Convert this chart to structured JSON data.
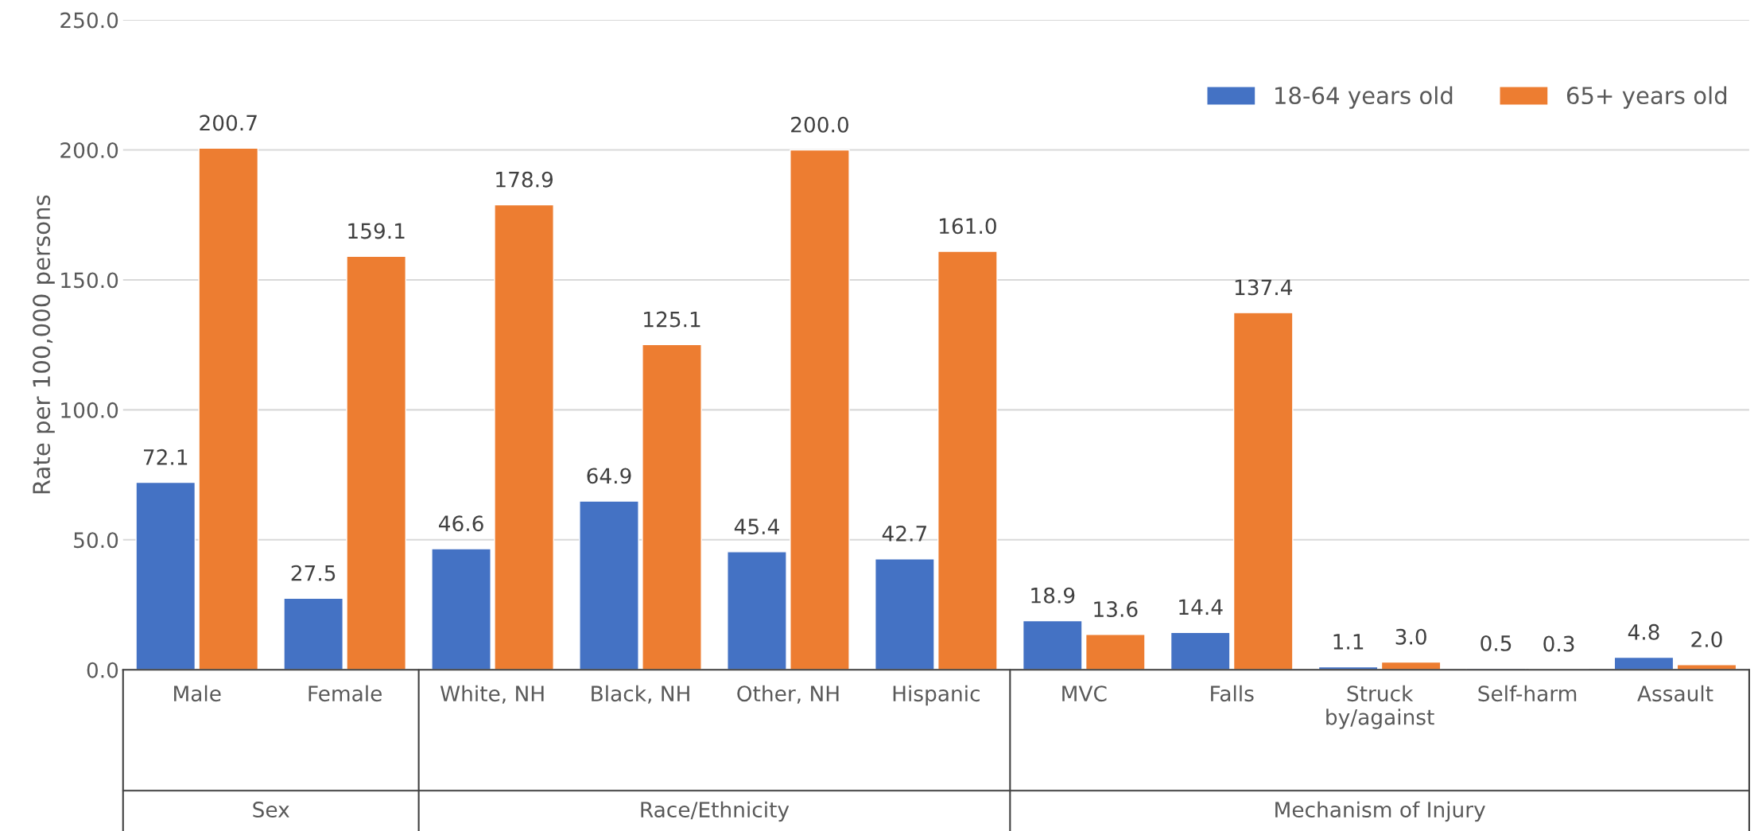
{
  "chart_data": {
    "type": "bar",
    "ylabel": "Rate per 100,000 persons",
    "categories": [
      "Male",
      "Female",
      "White, NH",
      "Black, NH",
      "Other, NH",
      "Hispanic",
      "MVC",
      "Falls",
      "Struck\nby/against",
      "Self-harm",
      "Assault"
    ],
    "series": [
      {
        "name": "18-64 years old",
        "color": "#4472c4",
        "values": [
          72.1,
          27.5,
          46.6,
          64.9,
          45.4,
          42.7,
          18.9,
          14.4,
          1.1,
          0.5,
          4.8
        ],
        "value_labels": [
          "72.1",
          "27.5",
          "46.6",
          "64.9",
          "45.4",
          "42.7",
          "18.9",
          "14.4",
          "1.1",
          "0.5",
          "4.8"
        ]
      },
      {
        "name": "65+ years old",
        "color": "#ed7d31",
        "values": [
          200.7,
          159.1,
          178.9,
          125.1,
          200.0,
          161.0,
          13.6,
          137.4,
          3.0,
          0.3,
          2.0
        ],
        "value_labels": [
          "200.7",
          "159.1",
          "178.9",
          "125.1",
          "200.0",
          "161.0",
          "13.6",
          "137.4",
          "3.0",
          "0.3",
          "2.0"
        ]
      }
    ],
    "ylim": [
      0,
      250
    ],
    "yticks": [
      {
        "value": 0,
        "label": "0.0"
      },
      {
        "value": 50,
        "label": "50.0"
      },
      {
        "value": 100,
        "label": "100.0"
      },
      {
        "value": 150,
        "label": "150.0"
      },
      {
        "value": 200,
        "label": "200.0"
      },
      {
        "value": 250,
        "label": "250.0"
      }
    ],
    "grid": "y",
    "legend": "top right",
    "annotations": [
      "Sex",
      "Race/Ethnicity",
      "Mechanism of Injury"
    ]
  }
}
